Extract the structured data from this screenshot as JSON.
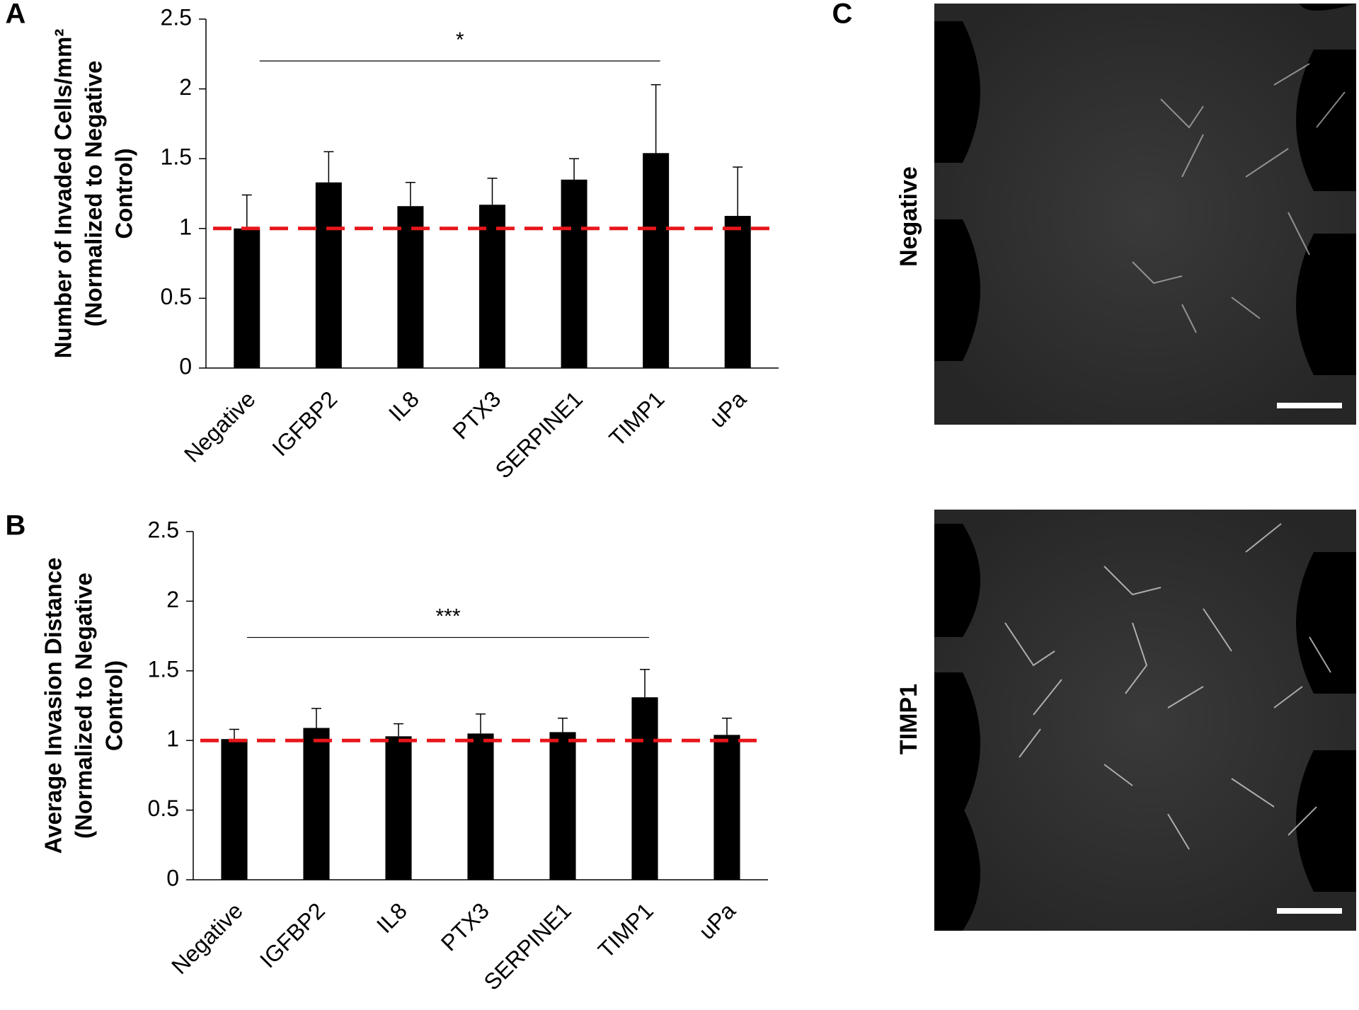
{
  "chart_data": [
    {
      "type": "bar",
      "panel": "A",
      "ylabel": [
        "Number of Invaded Cells/mm²",
        "(Normalized to Negative",
        "Control)"
      ],
      "categories": [
        "Negative",
        "IGFBP2",
        "IL8",
        "PTX3",
        "SERPINE1",
        "TIMP1",
        "uPa"
      ],
      "values": [
        1.0,
        1.33,
        1.16,
        1.17,
        1.35,
        1.54,
        1.09
      ],
      "errors": [
        0.24,
        0.22,
        0.17,
        0.19,
        0.15,
        0.49,
        0.35
      ],
      "color": "#000000",
      "reference_line": 1,
      "reference_color": "#e8151b",
      "significance": {
        "label": "*",
        "from": "Negative",
        "to": "TIMP1",
        "value": 2.2
      },
      "ylim": [
        0,
        2.5
      ],
      "yticks": [
        0,
        0.5,
        1,
        1.5,
        2,
        2.5
      ]
    },
    {
      "type": "bar",
      "panel": "B",
      "ylabel": [
        "Average Invasion Distance",
        "(Normalized to Negative",
        "Control)"
      ],
      "categories": [
        "Negative",
        "IGFBP2",
        "IL8",
        "PTX3",
        "SERPINE1",
        "TIMP1",
        "uPa"
      ],
      "values": [
        1.01,
        1.09,
        1.03,
        1.05,
        1.06,
        1.31,
        1.04
      ],
      "errors": [
        0.07,
        0.14,
        0.09,
        0.14,
        0.1,
        0.2,
        0.12
      ],
      "color": "#000000",
      "reference_line": 1,
      "reference_color": "#e8151b",
      "significance": {
        "label": "***",
        "from": "Negative",
        "to": "TIMP1",
        "value": 1.74
      },
      "ylim": [
        0,
        2.5
      ],
      "yticks": [
        0,
        0.5,
        1,
        1.5,
        2,
        2.5
      ]
    }
  ],
  "image_panel": {
    "label": "C",
    "images": [
      {
        "label": "Negative"
      },
      {
        "label": "TIMP1"
      }
    ]
  }
}
